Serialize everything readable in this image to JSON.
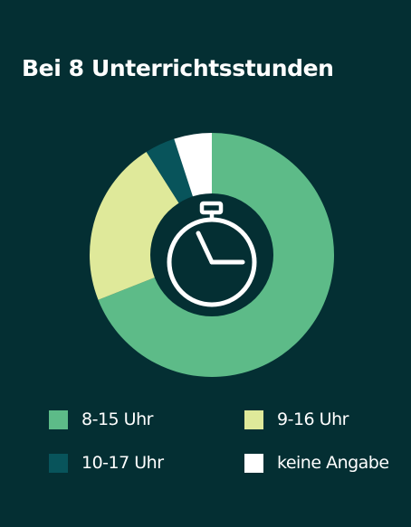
{
  "title": "Bei 8 Unterrichtsstunden",
  "colors": {
    "background": "#042f33",
    "hub": "#042f33",
    "icon": "#ffffff"
  },
  "icon": "stopwatch-icon",
  "chart_data": {
    "type": "pie",
    "variant": "donut",
    "title": "Bei 8 Unterrichtsstunden",
    "categories": [
      "8-15 Uhr",
      "9-16 Uhr",
      "10-17 Uhr",
      "keine Angabe"
    ],
    "values": [
      69,
      22,
      4,
      5
    ],
    "unit": "%",
    "colors": [
      "#5dbb88",
      "#dfe99a",
      "#08545b",
      "#ffffff"
    ],
    "start_angle": "12 o'clock",
    "direction": "clockwise",
    "legend_placement": "bottom"
  },
  "legend": [
    {
      "label": "8-15 Uhr",
      "color": "#5dbb88"
    },
    {
      "label": "9-16 Uhr",
      "color": "#dfe99a"
    },
    {
      "label": "10-17 Uhr",
      "color": "#08545b"
    },
    {
      "label": "keine Angabe",
      "color": "#ffffff"
    }
  ]
}
